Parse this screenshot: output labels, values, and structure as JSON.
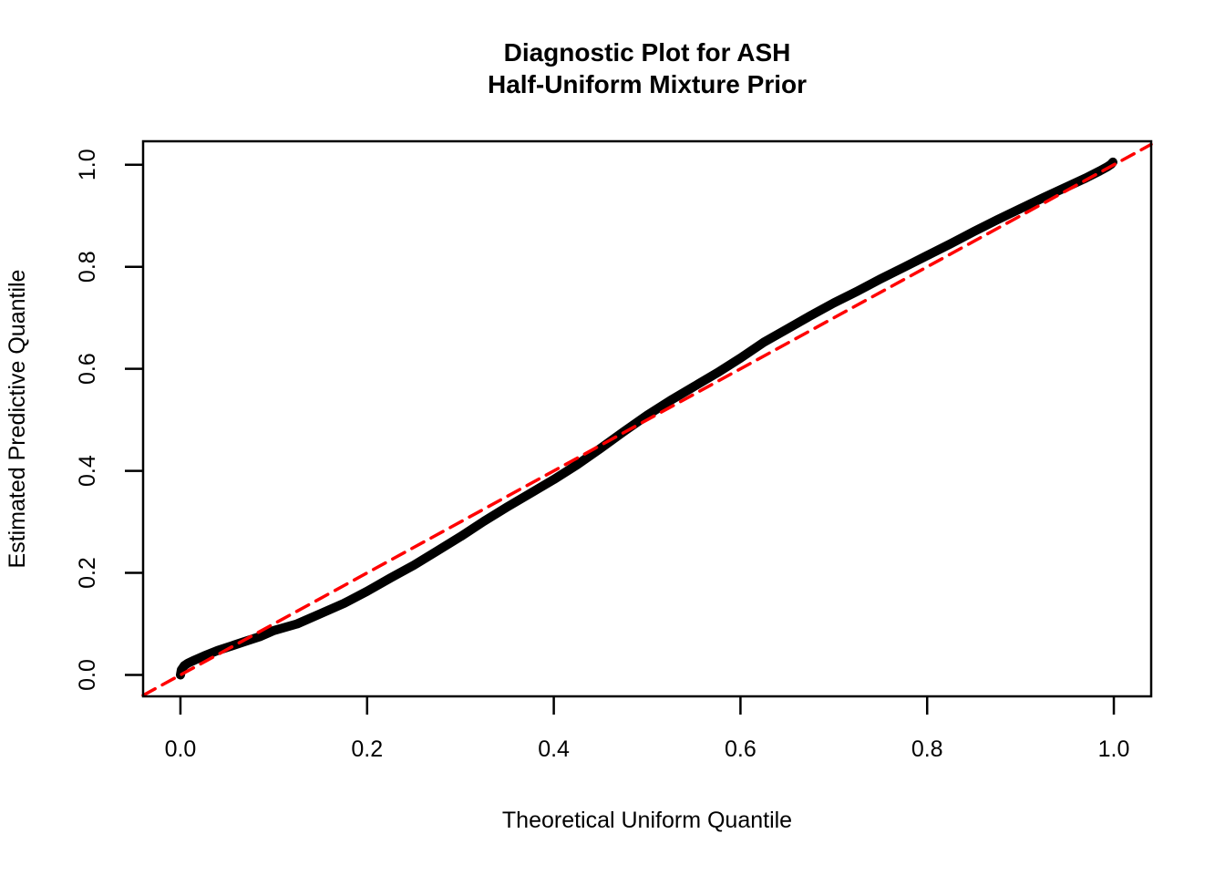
{
  "figure": {
    "background_color": "#ffffff"
  },
  "chart_data": {
    "type": "line",
    "title_lines": [
      "Diagnostic Plot for ASH",
      "Half-Uniform Mixture Prior"
    ],
    "title": "Diagnostic Plot for ASH\nHalf-Uniform Mixture Prior",
    "xlabel": "Theoretical Uniform Quantile",
    "ylabel": "Estimated Predictive Quantile",
    "xlim": [
      -0.04,
      1.04
    ],
    "ylim": [
      -0.042,
      1.046
    ],
    "grid": false,
    "legend": null,
    "x_tick_values": [
      0.0,
      0.2,
      0.4,
      0.6,
      0.8,
      1.0
    ],
    "x_tick_labels": [
      "0.0",
      "0.2",
      "0.4",
      "0.6",
      "0.8",
      "1.0"
    ],
    "y_tick_values": [
      0.0,
      0.2,
      0.4,
      0.6,
      0.8,
      1.0
    ],
    "y_tick_labels": [
      "0.0",
      "0.2",
      "0.4",
      "0.6",
      "0.8",
      "1.0"
    ],
    "series": [
      {
        "name": "estimated-predictive-quantile-curve",
        "type": "line",
        "color": "#000000",
        "stroke_width": 10,
        "dashed": false,
        "points": [
          [
            0.0,
            0.0
          ],
          [
            0.001,
            0.01
          ],
          [
            0.004,
            0.018
          ],
          [
            0.008,
            0.023
          ],
          [
            0.015,
            0.029
          ],
          [
            0.025,
            0.037
          ],
          [
            0.04,
            0.048
          ],
          [
            0.055,
            0.057
          ],
          [
            0.07,
            0.066
          ],
          [
            0.085,
            0.075
          ],
          [
            0.1,
            0.087
          ],
          [
            0.125,
            0.1
          ],
          [
            0.15,
            0.12
          ],
          [
            0.175,
            0.14
          ],
          [
            0.2,
            0.164
          ],
          [
            0.225,
            0.19
          ],
          [
            0.25,
            0.215
          ],
          [
            0.275,
            0.243
          ],
          [
            0.3,
            0.271
          ],
          [
            0.325,
            0.301
          ],
          [
            0.35,
            0.329
          ],
          [
            0.375,
            0.356
          ],
          [
            0.4,
            0.383
          ],
          [
            0.425,
            0.412
          ],
          [
            0.45,
            0.444
          ],
          [
            0.475,
            0.477
          ],
          [
            0.5,
            0.509
          ],
          [
            0.525,
            0.538
          ],
          [
            0.55,
            0.565
          ],
          [
            0.575,
            0.592
          ],
          [
            0.6,
            0.621
          ],
          [
            0.625,
            0.652
          ],
          [
            0.65,
            0.678
          ],
          [
            0.675,
            0.704
          ],
          [
            0.7,
            0.729
          ],
          [
            0.725,
            0.752
          ],
          [
            0.75,
            0.776
          ],
          [
            0.775,
            0.799
          ],
          [
            0.8,
            0.822
          ],
          [
            0.825,
            0.845
          ],
          [
            0.85,
            0.869
          ],
          [
            0.875,
            0.892
          ],
          [
            0.9,
            0.914
          ],
          [
            0.925,
            0.936
          ],
          [
            0.95,
            0.957
          ],
          [
            0.97,
            0.974
          ],
          [
            0.985,
            0.988
          ],
          [
            0.993,
            0.996
          ],
          [
            0.997,
            1.001
          ],
          [
            0.999,
            1.005
          ]
        ]
      },
      {
        "name": "identity-reference-line",
        "type": "line",
        "color": "#ff0000",
        "stroke_width": 3.5,
        "dashed": true,
        "dash_pattern": "15 9",
        "points": [
          [
            -0.04,
            -0.04
          ],
          [
            1.04,
            1.04
          ]
        ]
      }
    ]
  }
}
